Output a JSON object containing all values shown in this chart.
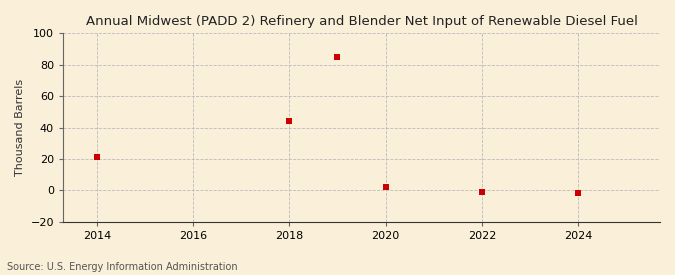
{
  "title": "Annual Midwest (PADD 2) Refinery and Blender Net Input of Renewable Diesel Fuel",
  "ylabel": "Thousand Barrels",
  "source": "Source: U.S. Energy Information Administration",
  "background_color": "#faefd8",
  "x_values": [
    2014,
    2018,
    2019,
    2020,
    2022,
    2024
  ],
  "y_values": [
    21,
    44,
    85,
    2,
    -1,
    -2
  ],
  "marker_color": "#cc0000",
  "marker_size": 4,
  "xlim": [
    2013.3,
    2025.7
  ],
  "ylim": [
    -20,
    100
  ],
  "yticks": [
    -20,
    0,
    20,
    40,
    60,
    80,
    100
  ],
  "xticks": [
    2014,
    2016,
    2018,
    2020,
    2022,
    2024
  ],
  "grid_color": "#bbbbbb",
  "title_fontsize": 9.5,
  "axis_fontsize": 8,
  "source_fontsize": 7,
  "ylabel_fontsize": 8
}
